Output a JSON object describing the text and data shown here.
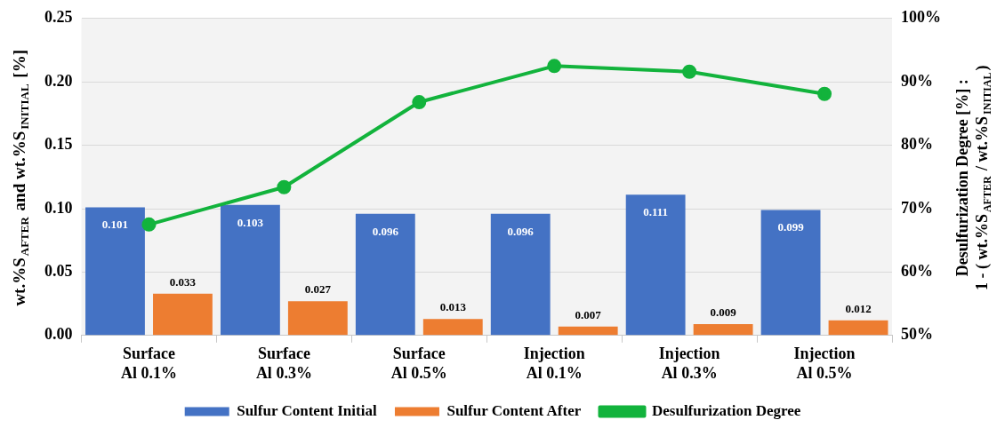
{
  "chart_data": {
    "type": "bar",
    "categories": [
      "Surface\nAl 0.1%",
      "Surface\nAl 0.3%",
      "Surface\nAl 0.5%",
      "Injection\nAl 0.1%",
      "Injection\nAl 0.3%",
      "Injection\nAl 0.5%"
    ],
    "series": [
      {
        "name": "Sulfur Content Initial",
        "color": "#4472c4",
        "values": [
          0.101,
          0.103,
          0.096,
          0.096,
          0.111,
          0.099
        ],
        "value_labels": [
          "0.101",
          "0.103",
          "0.096",
          "0.096",
          "0.111",
          "0.099"
        ]
      },
      {
        "name": "Sulfur Content After",
        "color": "#ed7d31",
        "values": [
          0.033,
          0.027,
          0.013,
          0.007,
          0.009,
          0.012
        ],
        "value_labels": [
          "0.033",
          "0.027",
          "0.013",
          "0.007",
          "0.009",
          "0.012"
        ]
      },
      {
        "name": "Desulfurization Degree",
        "type": "line",
        "axis": "y2",
        "color": "#12b33c",
        "values": [
          67.5,
          73.4,
          86.8,
          92.5,
          91.6,
          88.1
        ]
      }
    ],
    "ylabel": "wt.%S$_{AFTER}$ and wt.%S$_{INITIAL}$ [%]",
    "y2label": "Desulfurization Degree [%] :\n1 - ( wt.%S$_{AFTER}$ / wt.%S$_{INITIAL}$)",
    "ylim": [
      0,
      0.25
    ],
    "yticks": [
      {
        "value": 0,
        "label": "0.00"
      },
      {
        "value": 0.05,
        "label": "0.05"
      },
      {
        "value": 0.1,
        "label": "0.10"
      },
      {
        "value": 0.15,
        "label": "0.15"
      },
      {
        "value": 0.2,
        "label": "0.20"
      },
      {
        "value": 0.25,
        "label": "0.25"
      }
    ],
    "y2lim": [
      50,
      100
    ],
    "y2ticks": [
      {
        "value": 50,
        "label": "50%"
      },
      {
        "value": 60,
        "label": "60%"
      },
      {
        "value": 70,
        "label": "70%"
      },
      {
        "value": 80,
        "label": "80%"
      },
      {
        "value": 90,
        "label": "90%"
      },
      {
        "value": 100,
        "label": "100%"
      }
    ],
    "grid": "y",
    "legend": "bottom",
    "marker": "circle",
    "line_style": "solid"
  }
}
